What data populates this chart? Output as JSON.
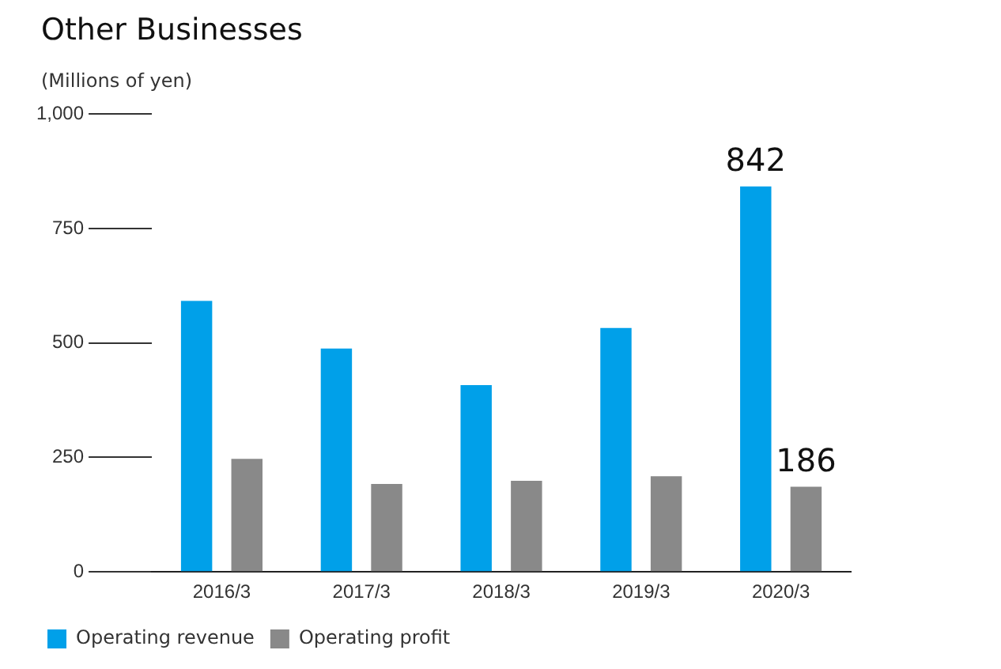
{
  "chart_data": {
    "type": "bar",
    "title": "Other Businesses",
    "subtitle": "(Millions of yen)",
    "categories": [
      "2016/3",
      "2017/3",
      "2018/3",
      "2019/3",
      "2020/3"
    ],
    "series": [
      {
        "name": "Operating revenue",
        "color": "#00a0e9",
        "values": [
          592,
          488,
          408,
          533,
          842
        ],
        "value_labels": [
          null,
          null,
          null,
          null,
          "842"
        ]
      },
      {
        "name": "Operating profit",
        "color": "#898989",
        "values": [
          247,
          192,
          199,
          209,
          186
        ],
        "value_labels": [
          null,
          null,
          null,
          null,
          "186"
        ]
      }
    ],
    "ylim": [
      0,
      1000
    ],
    "yticks": [
      0,
      {
        "value": 250,
        "label": "250"
      },
      {
        "value": 500,
        "label": "500"
      },
      {
        "value": 750,
        "label": "750"
      },
      {
        "value": 1000,
        "label": "1,000"
      }
    ],
    "grid": false,
    "legend": "bottom left"
  }
}
